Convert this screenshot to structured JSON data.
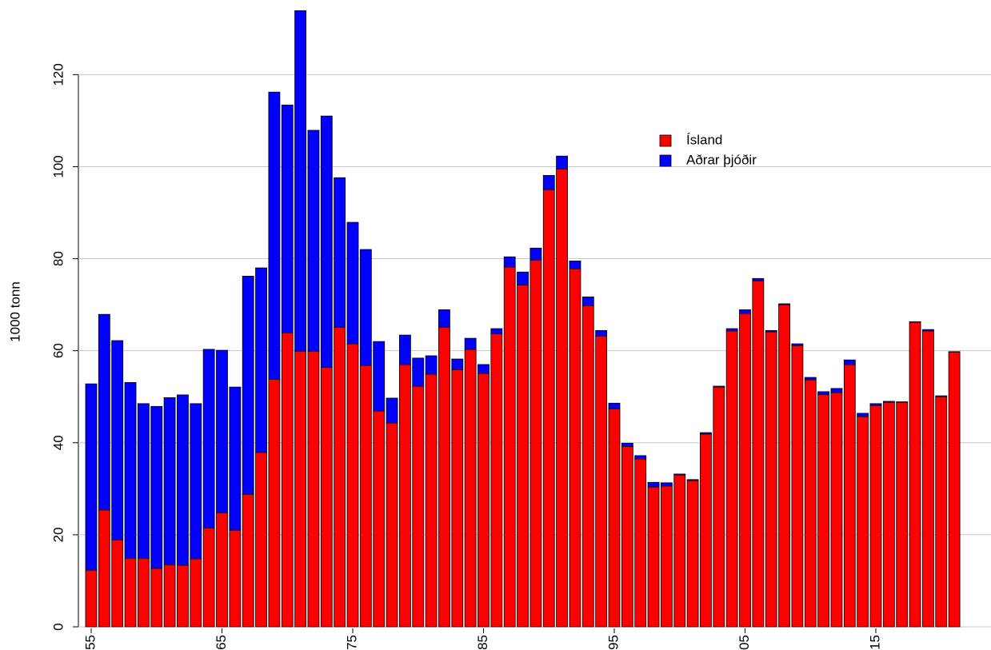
{
  "chart_data": {
    "type": "stacked_bar",
    "y_label": "1000 tonn",
    "categories": [
      "55",
      null,
      null,
      null,
      null,
      null,
      null,
      null,
      null,
      null,
      "65",
      null,
      null,
      null,
      null,
      null,
      null,
      null,
      null,
      null,
      "75",
      null,
      null,
      null,
      null,
      null,
      null,
      null,
      null,
      null,
      "85",
      null,
      null,
      null,
      null,
      null,
      null,
      null,
      null,
      null,
      "95",
      null,
      null,
      null,
      null,
      null,
      null,
      null,
      null,
      null,
      "05",
      null,
      null,
      null,
      null,
      null,
      null,
      null,
      null,
      null,
      "15",
      null,
      null,
      null,
      null,
      null,
      null
    ],
    "series": [
      {
        "name": "Ísland",
        "color": "#ff0000",
        "values": [
          12.3,
          25.4,
          18.9,
          14.9,
          14.9,
          12.7,
          13.5,
          13.4,
          14.8,
          21.5,
          24.8,
          21.0,
          28.8,
          37.9,
          53.8,
          63.9,
          59.9,
          59.9,
          56.4,
          65.1,
          61.5,
          56.8,
          46.9,
          44.3,
          57.0,
          52.3,
          54.9,
          65.1,
          55.9,
          60.3,
          55.1,
          63.7,
          78.2,
          74.3,
          79.7,
          95.0,
          99.5,
          77.8,
          69.8,
          63.2,
          47.4,
          39.2,
          36.5,
          30.4,
          30.6,
          33.0,
          31.8,
          41.9,
          52.1,
          64.3,
          68.1,
          75.2,
          64.1,
          70.0,
          61.1,
          53.7,
          50.5,
          50.9,
          57.0,
          45.7,
          48.1,
          48.8,
          48.8,
          66.2,
          64.3,
          50.0,
          59.7
        ]
      },
      {
        "name": "Aðrar þjóðir",
        "color": "#0000ff",
        "values": [
          40.5,
          42.5,
          43.3,
          38.2,
          33.6,
          35.2,
          36.3,
          37.0,
          33.7,
          38.8,
          35.3,
          31.1,
          47.4,
          40.1,
          62.4,
          49.5,
          74.0,
          48.0,
          54.6,
          32.5,
          26.4,
          25.2,
          15.1,
          5.4,
          6.4,
          6.1,
          4.0,
          3.8,
          2.3,
          2.4,
          1.9,
          1.1,
          2.2,
          2.8,
          2.6,
          3.1,
          2.8,
          1.7,
          1.9,
          1.2,
          1.2,
          0.7,
          0.7,
          1.0,
          0.7,
          0.2,
          0.2,
          0.3,
          0.2,
          0.5,
          0.8,
          0.5,
          0.3,
          0.2,
          0.4,
          0.5,
          0.6,
          0.9,
          1.0,
          0.7,
          0.4,
          0.2,
          0.1,
          0.1,
          0.3,
          0.2,
          0.1
        ]
      }
    ],
    "ylim": [
      0,
      135
    ],
    "yticks": [
      0,
      20,
      40,
      60,
      80,
      100,
      120
    ],
    "grid": true
  }
}
